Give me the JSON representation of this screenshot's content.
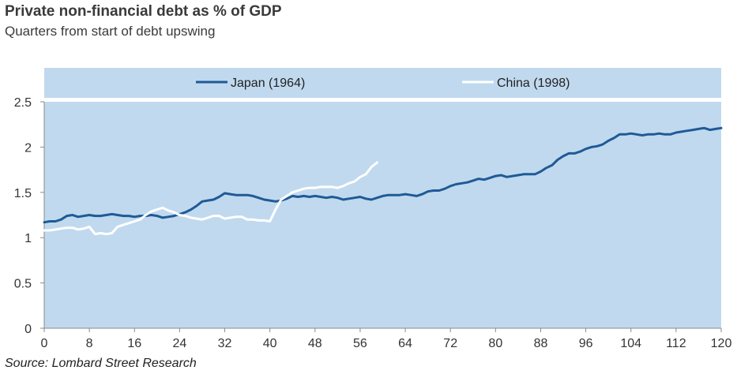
{
  "chart_data": {
    "type": "line",
    "title": "Private non-financial debt as % of GDP",
    "subtitle": "Quarters from start of debt upswing",
    "source": "Source: Lombard Street Research",
    "xlim": [
      0,
      120
    ],
    "ylim": [
      0,
      2.5
    ],
    "xticks": [
      0,
      8,
      16,
      24,
      32,
      40,
      48,
      56,
      64,
      72,
      80,
      88,
      96,
      104,
      112,
      120
    ],
    "yticks": [
      0,
      0.5,
      1,
      1.5,
      2,
      2.5
    ],
    "ytick_labels": [
      "0",
      "0.5",
      "1",
      "1.5",
      "2",
      "2.5"
    ],
    "grid": false,
    "legend_position": "top",
    "background_color": "#c0d9ee",
    "series": [
      {
        "name": "Japan (1964)",
        "color": "#1f5a96",
        "x": [
          0,
          1,
          2,
          3,
          4,
          5,
          6,
          7,
          8,
          9,
          10,
          11,
          12,
          13,
          14,
          15,
          16,
          17,
          18,
          19,
          20,
          21,
          22,
          23,
          24,
          25,
          26,
          27,
          28,
          29,
          30,
          31,
          32,
          33,
          34,
          35,
          36,
          37,
          38,
          39,
          40,
          41,
          42,
          43,
          44,
          45,
          46,
          47,
          48,
          49,
          50,
          51,
          52,
          53,
          54,
          55,
          56,
          57,
          58,
          59,
          60,
          61,
          62,
          63,
          64,
          65,
          66,
          67,
          68,
          69,
          70,
          71,
          72,
          73,
          74,
          75,
          76,
          77,
          78,
          79,
          80,
          81,
          82,
          83,
          84,
          85,
          86,
          87,
          88,
          89,
          90,
          91,
          92,
          93,
          94,
          95,
          96,
          97,
          98,
          99,
          100,
          101,
          102,
          103,
          104,
          105,
          106,
          107,
          108,
          109,
          110,
          111,
          112,
          113,
          114,
          115,
          116,
          117,
          118,
          119,
          120
        ],
        "y": [
          1.17,
          1.18,
          1.18,
          1.2,
          1.24,
          1.25,
          1.23,
          1.24,
          1.25,
          1.24,
          1.24,
          1.25,
          1.26,
          1.25,
          1.24,
          1.24,
          1.23,
          1.24,
          1.24,
          1.25,
          1.24,
          1.22,
          1.23,
          1.24,
          1.26,
          1.28,
          1.31,
          1.35,
          1.4,
          1.41,
          1.42,
          1.45,
          1.49,
          1.48,
          1.47,
          1.47,
          1.47,
          1.46,
          1.44,
          1.42,
          1.41,
          1.4,
          1.41,
          1.43,
          1.46,
          1.45,
          1.46,
          1.45,
          1.46,
          1.45,
          1.44,
          1.45,
          1.44,
          1.42,
          1.43,
          1.44,
          1.45,
          1.43,
          1.42,
          1.44,
          1.46,
          1.47,
          1.47,
          1.47,
          1.48,
          1.47,
          1.46,
          1.48,
          1.51,
          1.52,
          1.52,
          1.54,
          1.57,
          1.59,
          1.6,
          1.61,
          1.63,
          1.65,
          1.64,
          1.66,
          1.68,
          1.69,
          1.67,
          1.68,
          1.69,
          1.7,
          1.7,
          1.7,
          1.73,
          1.77,
          1.8,
          1.86,
          1.9,
          1.93,
          1.93,
          1.95,
          1.98,
          2.0,
          2.01,
          2.03,
          2.07,
          2.1,
          2.14,
          2.14,
          2.15,
          2.14,
          2.13,
          2.14,
          2.14,
          2.15,
          2.14,
          2.14,
          2.16,
          2.17,
          2.18,
          2.19,
          2.2,
          2.21,
          2.19,
          2.2,
          2.21
        ]
      },
      {
        "name": "China (1998)",
        "color": "#ffffff",
        "x": [
          0,
          1,
          2,
          3,
          4,
          5,
          6,
          7,
          8,
          9,
          10,
          11,
          12,
          13,
          14,
          15,
          16,
          17,
          18,
          19,
          20,
          21,
          22,
          23,
          24,
          25,
          26,
          27,
          28,
          29,
          30,
          31,
          32,
          33,
          34,
          35,
          36,
          37,
          38,
          39,
          40,
          41,
          42,
          43,
          44,
          45,
          46,
          47,
          48,
          49,
          50,
          51,
          52,
          53,
          54,
          55,
          56,
          57,
          58,
          59
        ],
        "y": [
          1.08,
          1.08,
          1.09,
          1.1,
          1.11,
          1.11,
          1.09,
          1.1,
          1.12,
          1.04,
          1.05,
          1.04,
          1.05,
          1.12,
          1.14,
          1.16,
          1.18,
          1.2,
          1.25,
          1.29,
          1.31,
          1.33,
          1.3,
          1.28,
          1.25,
          1.24,
          1.22,
          1.21,
          1.2,
          1.22,
          1.24,
          1.24,
          1.21,
          1.22,
          1.23,
          1.23,
          1.2,
          1.2,
          1.19,
          1.19,
          1.18,
          1.31,
          1.42,
          1.46,
          1.5,
          1.52,
          1.54,
          1.55,
          1.55,
          1.56,
          1.56,
          1.56,
          1.55,
          1.57,
          1.6,
          1.62,
          1.67,
          1.7,
          1.78,
          1.83
        ]
      }
    ]
  }
}
